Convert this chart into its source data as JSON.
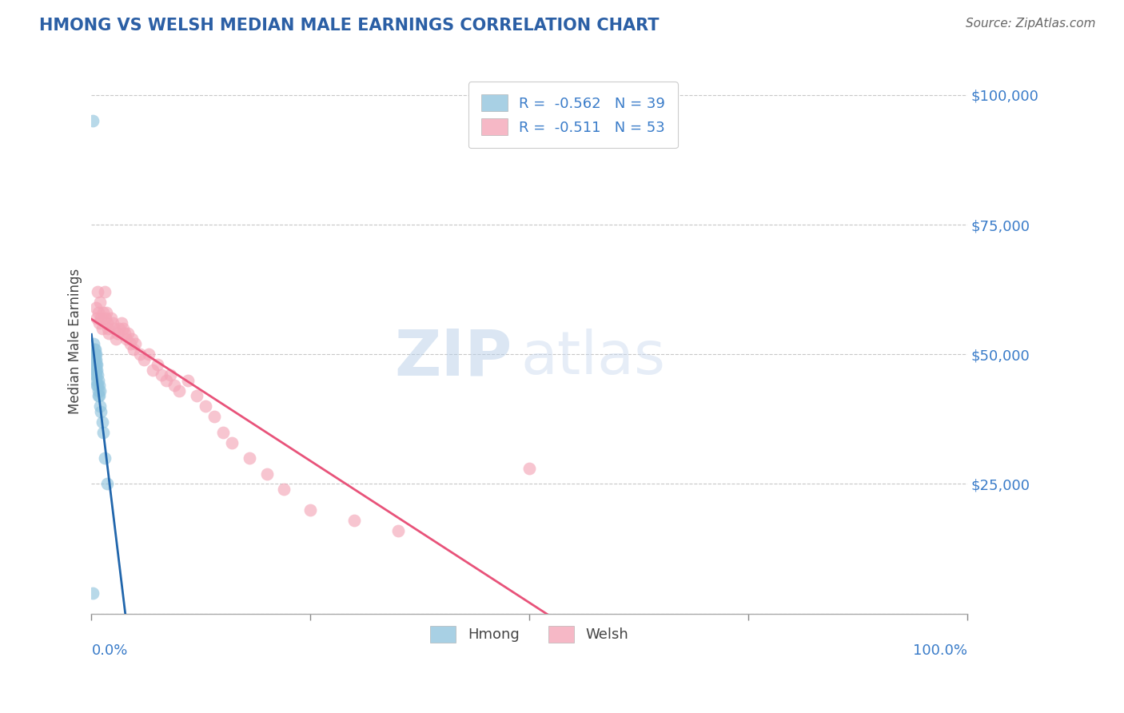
{
  "title": "HMONG VS WELSH MEDIAN MALE EARNINGS CORRELATION CHART",
  "source": "Source: ZipAtlas.com",
  "ylabel": "Median Male Earnings",
  "yticks": [
    0,
    25000,
    50000,
    75000,
    100000
  ],
  "ytick_labels": [
    "",
    "$25,000",
    "$50,000",
    "$75,000",
    "$100,000"
  ],
  "xmin": 0.0,
  "xmax": 1.0,
  "ymin": 0,
  "ymax": 105000,
  "hmong_color": "#92c5de",
  "welsh_color": "#f4a6b8",
  "hmong_line_color": "#2166ac",
  "welsh_line_color": "#e8537a",
  "label_color": "#3a7cc9",
  "title_color": "#2b5fa5",
  "R_hmong": -0.562,
  "N_hmong": 39,
  "R_welsh": -0.511,
  "N_welsh": 53,
  "hmong_x": [
    0.001,
    0.001,
    0.002,
    0.002,
    0.002,
    0.003,
    0.003,
    0.003,
    0.003,
    0.004,
    0.004,
    0.004,
    0.004,
    0.004,
    0.004,
    0.005,
    0.005,
    0.005,
    0.005,
    0.005,
    0.005,
    0.006,
    0.006,
    0.006,
    0.007,
    0.007,
    0.008,
    0.008,
    0.008,
    0.009,
    0.009,
    0.01,
    0.01,
    0.011,
    0.012,
    0.013,
    0.015,
    0.018,
    0.001
  ],
  "hmong_y": [
    95000,
    50000,
    52000,
    50000,
    49000,
    51000,
    50000,
    49000,
    48000,
    51000,
    50000,
    49000,
    48000,
    47000,
    46000,
    50000,
    49000,
    48000,
    47000,
    46000,
    45000,
    48000,
    47000,
    44000,
    46000,
    44000,
    45000,
    43000,
    42000,
    44000,
    42000,
    43000,
    40000,
    39000,
    37000,
    35000,
    30000,
    25000,
    4000
  ],
  "welsh_x": [
    0.005,
    0.006,
    0.007,
    0.008,
    0.009,
    0.01,
    0.011,
    0.012,
    0.013,
    0.015,
    0.016,
    0.017,
    0.018,
    0.019,
    0.02,
    0.022,
    0.024,
    0.026,
    0.028,
    0.03,
    0.032,
    0.034,
    0.036,
    0.038,
    0.04,
    0.042,
    0.044,
    0.046,
    0.048,
    0.05,
    0.055,
    0.06,
    0.065,
    0.07,
    0.075,
    0.08,
    0.085,
    0.09,
    0.095,
    0.1,
    0.11,
    0.12,
    0.13,
    0.14,
    0.15,
    0.16,
    0.18,
    0.2,
    0.22,
    0.25,
    0.3,
    0.35,
    0.5
  ],
  "welsh_y": [
    59000,
    57000,
    62000,
    58000,
    56000,
    60000,
    57000,
    55000,
    58000,
    62000,
    57000,
    58000,
    56000,
    55000,
    54000,
    57000,
    56000,
    55000,
    53000,
    54000,
    55000,
    56000,
    55000,
    54000,
    53000,
    54000,
    52000,
    53000,
    51000,
    52000,
    50000,
    49000,
    50000,
    47000,
    48000,
    46000,
    45000,
    46000,
    44000,
    43000,
    45000,
    42000,
    40000,
    38000,
    35000,
    33000,
    30000,
    27000,
    24000,
    20000,
    18000,
    16000,
    28000
  ],
  "watermark_zip": "ZIP",
  "watermark_atlas": "atlas",
  "background_color": "#ffffff",
  "grid_color": "#c8c8c8"
}
